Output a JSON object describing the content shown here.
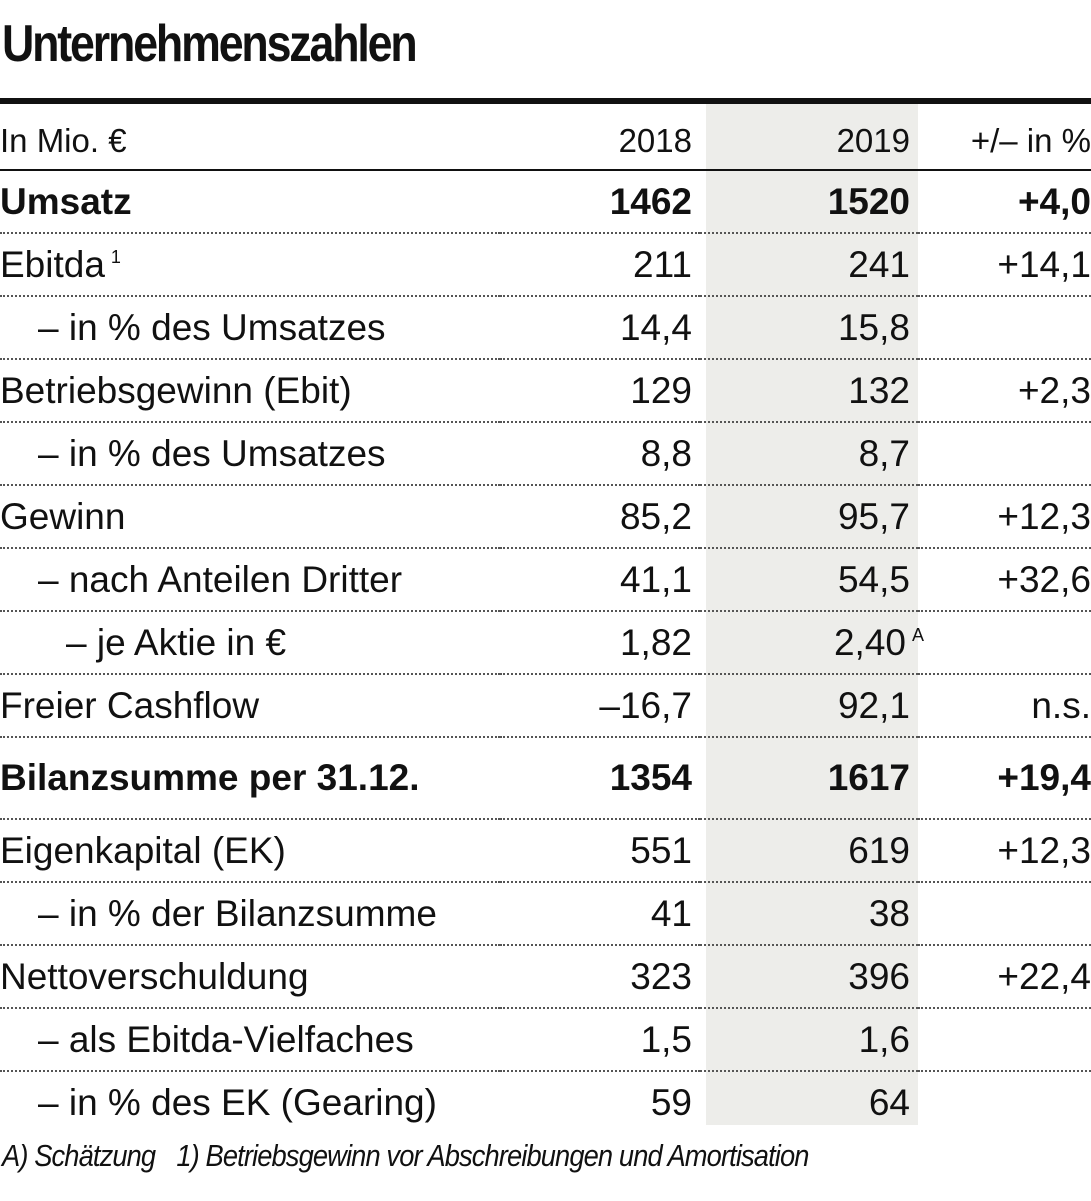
{
  "title": "Unternehmenszahlen",
  "header": {
    "label": "In Mio. €",
    "y2018": "2018",
    "y2019": "2019",
    "diff": "+/– in %"
  },
  "rows": [
    {
      "label": "Umsatz",
      "v2018": "1462",
      "v2019": "1520",
      "diff": "+4,0",
      "bold": true,
      "indent": 0
    },
    {
      "label": "Ebitda",
      "label_mark": "1",
      "v2018": "211",
      "v2019": "241",
      "diff": "+14,1",
      "indent": 0
    },
    {
      "label": "– in % des Umsatzes",
      "v2018": "14,4",
      "v2019": "15,8",
      "diff": "",
      "indent": 1
    },
    {
      "label": "Betriebsgewinn (Ebit)",
      "v2018": "129",
      "v2019": "132",
      "diff": "+2,3",
      "indent": 0
    },
    {
      "label": "– in % des Umsatzes",
      "v2018": "8,8",
      "v2019": "8,7",
      "diff": "",
      "indent": 1
    },
    {
      "label": "Gewinn",
      "v2018": "85,2",
      "v2019": "95,7",
      "diff": "+12,3",
      "indent": 0
    },
    {
      "label": "– nach Anteilen Dritter",
      "v2018": "41,1",
      "v2019": "54,5",
      "diff": "+32,6",
      "indent": 1
    },
    {
      "label": "– je Aktie in €",
      "v2018": "1,82",
      "v2019": "2,40",
      "v2019_mark": "A",
      "diff": "",
      "indent": 2
    },
    {
      "label": "Freier Cashflow",
      "v2018": "–16,7",
      "v2019": "92,1",
      "diff": "n.s.",
      "indent": 0
    },
    {
      "label": "Bilanzsumme per 31.12.",
      "v2018": "1354",
      "v2019": "1617",
      "diff": "+19,4",
      "bold": true,
      "indent": 0
    },
    {
      "label": "Eigenkapital (EK)",
      "v2018": "551",
      "v2019": "619",
      "diff": "+12,3",
      "indent": 0
    },
    {
      "label": "– in % der Bilanzsumme",
      "v2018": "41",
      "v2019": "38",
      "diff": "",
      "indent": 1
    },
    {
      "label": "Nettoverschuldung",
      "v2018": "323",
      "v2019": "396",
      "diff": "+22,4",
      "indent": 0
    },
    {
      "label": "– als Ebitda-Vielfaches",
      "v2018": "1,5",
      "v2019": "1,6",
      "diff": "",
      "indent": 1
    },
    {
      "label": "– in % des EK (Gearing)",
      "v2018": "59",
      "v2019": "64",
      "diff": "",
      "indent": 1
    }
  ],
  "footnotes": {
    "a": "A) Schätzung",
    "one": "1) Betriebsgewinn vor Abschreibungen und Amortisation"
  }
}
